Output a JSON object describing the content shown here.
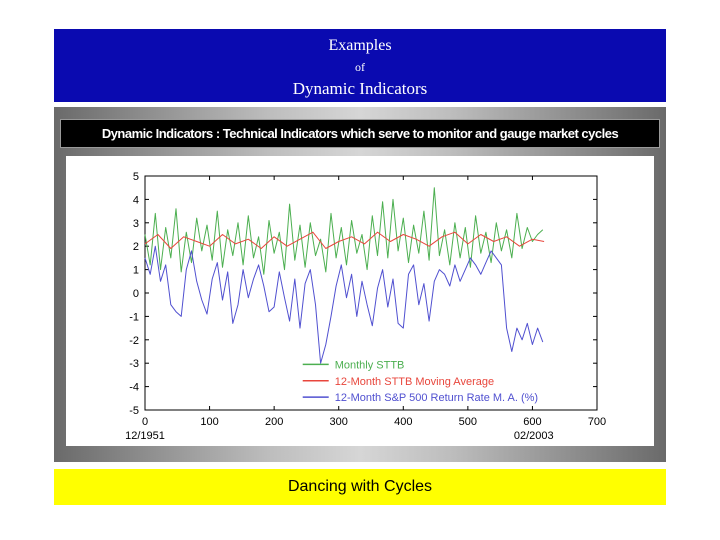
{
  "header": {
    "title": "Examples",
    "connector": "of",
    "subtitle": "Dynamic Indicators"
  },
  "description_bar": "Dynamic Indicators : Technical Indicators which serve to monitor and gauge market cycles",
  "footer": "Dancing with Cycles",
  "colors": {
    "banner": "#0a0ab0",
    "footer": "#ffff00",
    "stt_monthly": "#4caf50",
    "stt_ma": "#e8463c",
    "sp_return": "#5050d0"
  },
  "chart_data": {
    "type": "line",
    "xlim": [
      0,
      700
    ],
    "ylim": [
      -5,
      5
    ],
    "x_ticks": [
      0,
      100,
      200,
      300,
      400,
      500,
      600,
      700
    ],
    "y_ticks": [
      -5,
      -4,
      -3,
      -2,
      -1,
      0,
      1,
      2,
      3,
      4,
      5
    ],
    "x_annotations": [
      {
        "x": 0,
        "label": "12/1951"
      },
      {
        "x": 602,
        "label": "02/2003"
      }
    ],
    "series": [
      {
        "name": "Monthly STTB",
        "color": "#4caf50",
        "x": [
          0,
          8,
          16,
          24,
          32,
          40,
          48,
          56,
          64,
          72,
          80,
          88,
          96,
          104,
          112,
          120,
          128,
          136,
          144,
          152,
          160,
          168,
          176,
          184,
          192,
          200,
          208,
          216,
          224,
          232,
          240,
          248,
          256,
          264,
          272,
          280,
          288,
          296,
          304,
          312,
          320,
          328,
          336,
          344,
          352,
          360,
          368,
          376,
          384,
          392,
          400,
          408,
          416,
          424,
          432,
          440,
          448,
          456,
          464,
          472,
          480,
          488,
          496,
          504,
          512,
          520,
          528,
          536,
          544,
          552,
          560,
          568,
          576,
          584,
          592,
          600,
          608,
          616
        ],
        "values": [
          2.5,
          1.2,
          3.4,
          1.0,
          2.8,
          1.5,
          3.6,
          0.9,
          2.6,
          1.3,
          3.2,
          1.8,
          2.9,
          1.4,
          3.5,
          1.1,
          2.7,
          1.6,
          3.0,
          1.2,
          3.3,
          1.5,
          2.4,
          0.8,
          3.1,
          1.7,
          2.6,
          1.0,
          3.8,
          1.4,
          2.9,
          1.1,
          3.0,
          1.6,
          2.3,
          0.9,
          3.4,
          1.5,
          2.8,
          1.2,
          3.1,
          1.7,
          2.5,
          1.0,
          3.3,
          1.6,
          3.9,
          1.5,
          4.0,
          1.8,
          3.2,
          1.3,
          2.9,
          1.7,
          3.5,
          1.4,
          4.5,
          1.6,
          2.7,
          1.2,
          3.0,
          1.5,
          2.8,
          1.1,
          3.3,
          1.7,
          2.6,
          1.3,
          3.0,
          1.8,
          2.7,
          1.5,
          3.4,
          1.9,
          2.8,
          2.2,
          2.5,
          2.7
        ]
      },
      {
        "name": "12-Month STTB Moving Average",
        "color": "#e8463c",
        "x": [
          0,
          20,
          40,
          60,
          80,
          100,
          120,
          140,
          160,
          180,
          200,
          220,
          240,
          260,
          280,
          300,
          320,
          340,
          360,
          380,
          400,
          420,
          440,
          460,
          480,
          500,
          520,
          540,
          560,
          580,
          600,
          618
        ],
        "values": [
          2.1,
          2.5,
          1.9,
          2.4,
          2.2,
          2.0,
          2.5,
          2.1,
          2.3,
          1.9,
          2.4,
          2.0,
          2.3,
          2.6,
          1.9,
          2.2,
          2.4,
          2.1,
          2.6,
          2.2,
          2.5,
          2.3,
          2.0,
          2.4,
          2.6,
          2.1,
          2.5,
          2.2,
          2.4,
          2.0,
          2.3,
          2.2
        ]
      },
      {
        "name": "12-Month S&P 500 Return Rate M. A. (%)",
        "color": "#5050d0",
        "x": [
          0,
          8,
          16,
          24,
          32,
          40,
          48,
          56,
          64,
          72,
          80,
          88,
          96,
          104,
          112,
          120,
          128,
          136,
          144,
          152,
          160,
          168,
          176,
          184,
          192,
          200,
          208,
          216,
          224,
          232,
          240,
          248,
          256,
          264,
          272,
          280,
          288,
          296,
          304,
          312,
          320,
          328,
          336,
          344,
          352,
          360,
          368,
          376,
          384,
          392,
          400,
          408,
          416,
          424,
          432,
          440,
          448,
          456,
          464,
          472,
          480,
          488,
          496,
          504,
          512,
          520,
          528,
          536,
          544,
          552,
          560,
          568,
          576,
          584,
          592,
          600,
          608,
          616
        ],
        "values": [
          1.5,
          0.8,
          2.0,
          0.5,
          1.2,
          -0.5,
          -0.8,
          -1.0,
          1.0,
          1.8,
          0.5,
          -0.3,
          -0.9,
          0.6,
          1.3,
          -0.3,
          0.9,
          -1.3,
          -0.5,
          1.0,
          -0.2,
          0.6,
          1.2,
          0.3,
          -0.8,
          -0.6,
          0.9,
          -0.2,
          -1.2,
          0.6,
          -1.5,
          0.4,
          1.0,
          -0.5,
          -3.0,
          -2.2,
          -1.0,
          0.3,
          1.2,
          -0.2,
          0.8,
          -1.0,
          0.5,
          -0.5,
          -1.4,
          0.2,
          1.0,
          -0.6,
          0.6,
          -1.3,
          -1.5,
          0.8,
          1.2,
          -0.5,
          0.4,
          -1.2,
          0.5,
          1.0,
          0.8,
          0.3,
          1.2,
          0.5,
          1.0,
          1.5,
          1.2,
          0.8,
          1.3,
          1.8,
          1.5,
          1.2,
          -1.5,
          -2.5,
          -1.5,
          -2.0,
          -1.3,
          -2.2,
          -1.5,
          -2.1
        ]
      }
    ]
  }
}
